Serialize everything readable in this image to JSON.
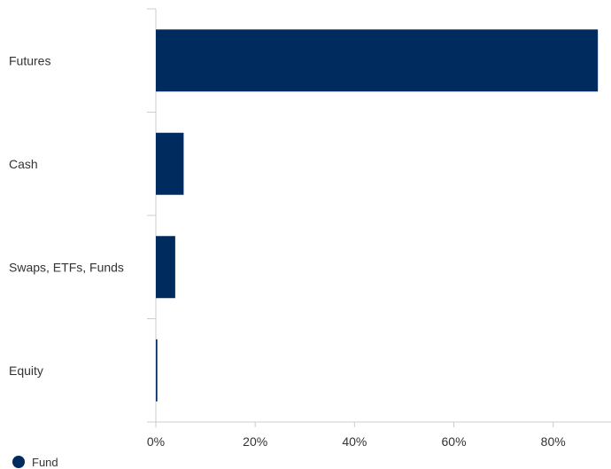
{
  "chart_data": {
    "type": "bar",
    "orientation": "horizontal",
    "categories": [
      "Futures",
      "Cash",
      "Swaps, ETFs, Funds",
      "Equity"
    ],
    "series": [
      {
        "name": "Fund",
        "color": "#002B5E",
        "values": [
          89,
          5.6,
          3.9,
          0.3
        ]
      }
    ],
    "xlim": [
      0,
      92
    ],
    "xticks": [
      0,
      20,
      40,
      60,
      80
    ],
    "xtick_labels": [
      "0%",
      "20%",
      "40%",
      "60%",
      "80%"
    ],
    "grid": false,
    "legend": {
      "position": "bottom-left",
      "entries": [
        "Fund"
      ]
    }
  }
}
